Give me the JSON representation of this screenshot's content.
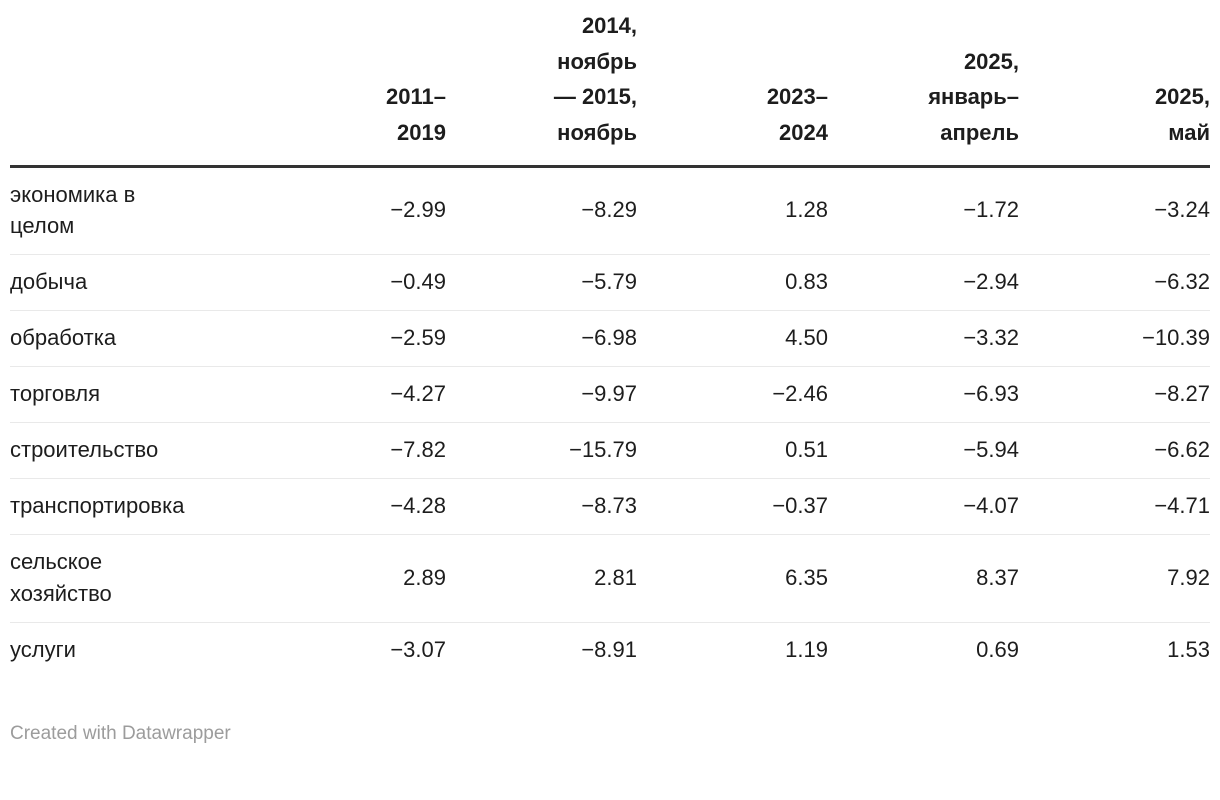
{
  "table": {
    "columns": [
      {
        "label": "2011–\n2019"
      },
      {
        "label": "2014,\nноябрь\n— 2015,\nноябрь"
      },
      {
        "label": "2023–\n2024"
      },
      {
        "label": "2025,\nянварь–\nапрель"
      },
      {
        "label": "2025,\nмай"
      }
    ],
    "rows": [
      {
        "label": "экономика в\nцелом",
        "values": [
          "−2.99",
          "−8.29",
          "1.28",
          "−1.72",
          "−3.24"
        ]
      },
      {
        "label": "добыча",
        "values": [
          "−0.49",
          "−5.79",
          "0.83",
          "−2.94",
          "−6.32"
        ]
      },
      {
        "label": "обработка",
        "values": [
          "−2.59",
          "−6.98",
          "4.50",
          "−3.32",
          "−10.39"
        ]
      },
      {
        "label": "торговля",
        "values": [
          "−4.27",
          "−9.97",
          "−2.46",
          "−6.93",
          "−8.27"
        ]
      },
      {
        "label": "строительство",
        "values": [
          "−7.82",
          "−15.79",
          "0.51",
          "−5.94",
          "−6.62"
        ]
      },
      {
        "label": "транспортировка",
        "values": [
          "−4.28",
          "−8.73",
          "−0.37",
          "−4.07",
          "−4.71"
        ]
      },
      {
        "label": "сельское\nхозяйство",
        "values": [
          "2.89",
          "2.81",
          "6.35",
          "8.37",
          "7.92"
        ]
      },
      {
        "label": "услуги",
        "values": [
          "−3.07",
          "−8.91",
          "1.19",
          "0.69",
          "1.53"
        ]
      }
    ]
  },
  "footer": {
    "credit": "Created with Datawrapper"
  },
  "colors": {
    "text": "#1d1d1d",
    "header_border": "#333333",
    "row_border": "#e9e9e9",
    "footer_text": "#9c9c9c"
  },
  "chart_data": {
    "type": "table",
    "title": "",
    "columns": [
      "2011–2019",
      "2014, ноябрь — 2015, ноябрь",
      "2023–2024",
      "2025, январь–апрель",
      "2025, май"
    ],
    "categories": [
      "экономика в целом",
      "добыча",
      "обработка",
      "торговля",
      "строительство",
      "транспортировка",
      "сельское хозяйство",
      "услуги"
    ],
    "series": [
      {
        "name": "2011–2019",
        "values": [
          -2.99,
          -0.49,
          -2.59,
          -4.27,
          -7.82,
          -4.28,
          2.89,
          -3.07
        ]
      },
      {
        "name": "2014, ноябрь — 2015, ноябрь",
        "values": [
          -8.29,
          -5.79,
          -6.98,
          -9.97,
          -15.79,
          -8.73,
          2.81,
          -8.91
        ]
      },
      {
        "name": "2023–2024",
        "values": [
          1.28,
          0.83,
          4.5,
          -2.46,
          0.51,
          -0.37,
          6.35,
          1.19
        ]
      },
      {
        "name": "2025, январь–апрель",
        "values": [
          -1.72,
          -2.94,
          -3.32,
          -6.93,
          -5.94,
          -4.07,
          8.37,
          0.69
        ]
      },
      {
        "name": "2025, май",
        "values": [
          -3.24,
          -6.32,
          -10.39,
          -8.27,
          -6.62,
          -4.71,
          7.92,
          1.53
        ]
      }
    ]
  }
}
